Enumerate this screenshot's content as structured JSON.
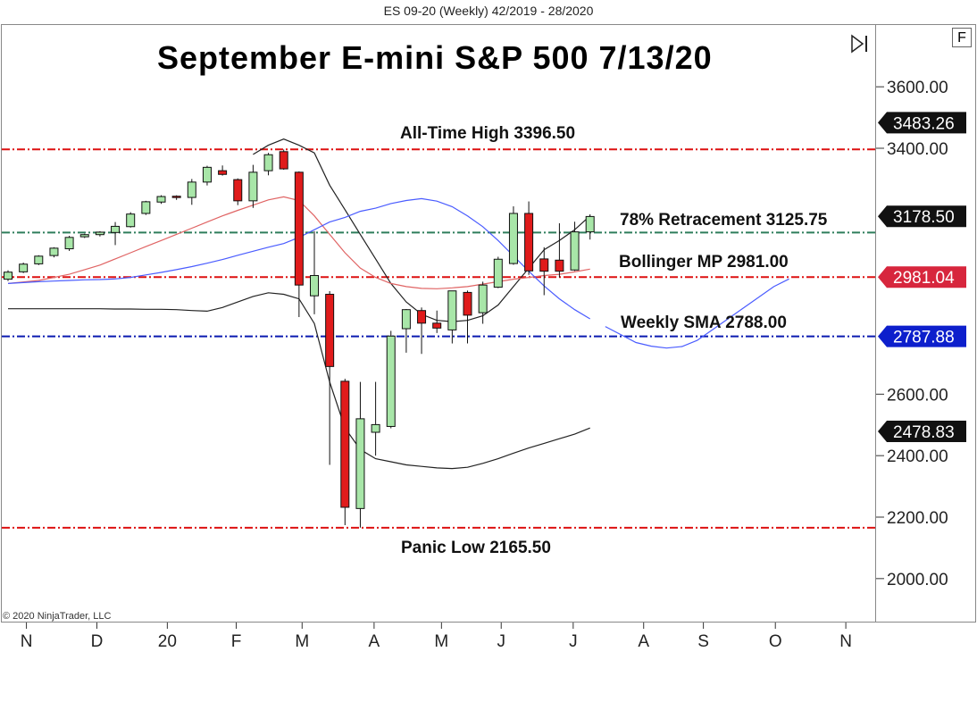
{
  "header": "ES 09-20 (Weekly)  42/2019 - 28/2020",
  "title": "September E-mini S&P 500 7/13/20",
  "copyright": "© 2020 NinjaTrader, LLC",
  "buttons": {
    "f_label": "F",
    "skip_icon": "skip-to-end-icon"
  },
  "colors": {
    "bull_fill": "#a8e6a8",
    "bear_fill": "#e01b1b",
    "candle_stroke": "#111111",
    "red_line": "#dd1111",
    "green_line": "#2e7d5b",
    "blue_line": "#0a1ab0",
    "bb_outer": "#222222",
    "bb_mid": "#e06464",
    "sma": "#4a5cff",
    "badge_dark": "#111111",
    "badge_red": "#d7263d",
    "badge_blue": "#0d1fcc"
  },
  "chart_data": {
    "type": "candlestick",
    "timeframe": "Weekly",
    "ylim": [
      1850,
      3750
    ],
    "y_ticks": [
      3600,
      3400,
      2600,
      2400,
      2200,
      2000
    ],
    "y_tick_labels": [
      "3600.00",
      "3400.00",
      "2600.00",
      "2400.00",
      "2200.00",
      "2000.00"
    ],
    "x_ticks": [
      {
        "label": "N",
        "week": 1.2
      },
      {
        "label": "D",
        "week": 5.8
      },
      {
        "label": "20",
        "week": 10.4
      },
      {
        "label": "F",
        "week": 14.9
      },
      {
        "label": "M",
        "week": 19.2
      },
      {
        "label": "A",
        "week": 23.9
      },
      {
        "label": "M",
        "week": 28.3
      },
      {
        "label": "J",
        "week": 32.2
      },
      {
        "label": "J",
        "week": 36.9
      },
      {
        "label": "A",
        "week": 41.5
      },
      {
        "label": "S",
        "week": 45.4
      },
      {
        "label": "O",
        "week": 50.1
      },
      {
        "label": "N",
        "week": 54.7
      }
    ],
    "candles": [
      {
        "o": 2974,
        "h": 3003,
        "l": 2968,
        "c": 2997
      },
      {
        "o": 2998,
        "h": 3028,
        "l": 2994,
        "c": 3023
      },
      {
        "o": 3024,
        "h": 3052,
        "l": 3020,
        "c": 3049
      },
      {
        "o": 3051,
        "h": 3078,
        "l": 3045,
        "c": 3075
      },
      {
        "o": 3073,
        "h": 3115,
        "l": 3066,
        "c": 3110
      },
      {
        "o": 3112,
        "h": 3122,
        "l": 3108,
        "c": 3119
      },
      {
        "o": 3119,
        "h": 3130,
        "l": 3113,
        "c": 3127
      },
      {
        "o": 3126,
        "h": 3160,
        "l": 3085,
        "c": 3146
      },
      {
        "o": 3145,
        "h": 3192,
        "l": 3142,
        "c": 3186
      },
      {
        "o": 3188,
        "h": 3229,
        "l": 3183,
        "c": 3226
      },
      {
        "o": 3225,
        "h": 3247,
        "l": 3219,
        "c": 3243
      },
      {
        "o": 3244,
        "h": 3247,
        "l": 3232,
        "c": 3242
      },
      {
        "o": 3240,
        "h": 3300,
        "l": 3216,
        "c": 3290
      },
      {
        "o": 3290,
        "h": 3343,
        "l": 3279,
        "c": 3338
      },
      {
        "o": 3327,
        "h": 3344,
        "l": 3311,
        "c": 3315
      },
      {
        "o": 3298,
        "h": 3302,
        "l": 3215,
        "c": 3229
      },
      {
        "o": 3229,
        "h": 3346,
        "l": 3206,
        "c": 3322
      },
      {
        "o": 3327,
        "h": 3385,
        "l": 3312,
        "c": 3379
      },
      {
        "o": 3389,
        "h": 3396,
        "l": 3330,
        "c": 3333
      },
      {
        "o": 3322,
        "h": 3325,
        "l": 2851,
        "c": 2955
      },
      {
        "o": 2920,
        "h": 3130,
        "l": 2860,
        "c": 2986
      },
      {
        "o": 2925,
        "h": 2935,
        "l": 2370,
        "c": 2690
      },
      {
        "o": 2642,
        "h": 2650,
        "l": 2174,
        "c": 2232
      },
      {
        "o": 2228,
        "h": 2640,
        "l": 2166,
        "c": 2520
      },
      {
        "o": 2476,
        "h": 2640,
        "l": 2400,
        "c": 2501
      },
      {
        "o": 2495,
        "h": 2806,
        "l": 2489,
        "c": 2789
      },
      {
        "o": 2813,
        "h": 2877,
        "l": 2735,
        "c": 2875
      },
      {
        "o": 2872,
        "h": 2882,
        "l": 2731,
        "c": 2831
      },
      {
        "o": 2831,
        "h": 2872,
        "l": 2799,
        "c": 2815
      },
      {
        "o": 2809,
        "h": 2925,
        "l": 2765,
        "c": 2936
      },
      {
        "o": 2931,
        "h": 2937,
        "l": 2765,
        "c": 2857
      },
      {
        "o": 2865,
        "h": 2966,
        "l": 2829,
        "c": 2955
      },
      {
        "o": 2948,
        "h": 3047,
        "l": 2945,
        "c": 3039
      },
      {
        "o": 3025,
        "h": 3211,
        "l": 3021,
        "c": 3188
      },
      {
        "o": 3188,
        "h": 3227,
        "l": 2988,
        "c": 3001
      },
      {
        "o": 3040,
        "h": 3078,
        "l": 2922,
        "c": 3000
      },
      {
        "o": 3036,
        "h": 3156,
        "l": 2980,
        "c": 3000
      },
      {
        "o": 3004,
        "h": 3161,
        "l": 3001,
        "c": 3128
      },
      {
        "o": 3128,
        "h": 3185,
        "l": 3103,
        "c": 3178
      }
    ],
    "indicators": {
      "bollinger_upper": [
        null,
        null,
        null,
        null,
        null,
        null,
        null,
        null,
        null,
        null,
        null,
        null,
        null,
        null,
        null,
        null,
        3380,
        3410,
        3430,
        3410,
        3385,
        3280,
        3200,
        3120,
        3040,
        2960,
        2900,
        2860,
        2840,
        2836,
        2840,
        2855,
        2890,
        2950,
        3010,
        3070,
        3100,
        3135,
        3180
      ],
      "bollinger_mid": [
        2960,
        2965,
        2970,
        2980,
        2990,
        3005,
        3020,
        3040,
        3060,
        3080,
        3100,
        3120,
        3140,
        3160,
        3180,
        3198,
        3215,
        3232,
        3242,
        3230,
        3180,
        3120,
        3060,
        3010,
        2980,
        2960,
        2950,
        2944,
        2943,
        2946,
        2950,
        2958,
        2966,
        2974,
        2980,
        2986,
        2990,
        2998,
        3007
      ],
      "bollinger_lower": [
        2878,
        2878,
        2878,
        2878,
        2878,
        2878,
        2878,
        2877,
        2877,
        2876,
        2876,
        2875,
        2872,
        2870,
        2882,
        2900,
        2918,
        2930,
        2925,
        2910,
        2830,
        2640,
        2490,
        2420,
        2390,
        2380,
        2370,
        2365,
        2360,
        2358,
        2362,
        2375,
        2390,
        2408,
        2425,
        2440,
        2455,
        2470,
        2490
      ],
      "weekly_sma": [
        2960,
        2963,
        2966,
        2968,
        2970,
        2972,
        2973,
        2975,
        2980,
        2988,
        2996,
        3005,
        3015,
        3026,
        3038,
        3052,
        3065,
        3078,
        3090,
        3110,
        3135,
        3160,
        3175,
        3195,
        3205,
        3220,
        3230,
        3236,
        3228,
        3210,
        3180,
        3145,
        3100,
        3050,
        3000,
        2952,
        2910,
        2875,
        2845
      ]
    },
    "sma_projection": [
      {
        "week": 39,
        "value": 2820
      },
      {
        "week": 41,
        "value": 2768
      },
      {
        "week": 42,
        "value": 2756
      },
      {
        "week": 43,
        "value": 2750
      },
      {
        "week": 44,
        "value": 2755
      },
      {
        "week": 45,
        "value": 2775
      },
      {
        "week": 46,
        "value": 2810
      },
      {
        "week": 48,
        "value": 2880
      },
      {
        "week": 50,
        "value": 2950
      },
      {
        "week": 51,
        "value": 2975
      }
    ],
    "bb_lower_projection": [
      {
        "week": 38,
        "value": 2490
      }
    ],
    "levels": [
      {
        "label": "All-Time High 3396.50",
        "value": 3396.5,
        "color": "red"
      },
      {
        "label": "78% Retracement 3125.75",
        "value": 3125.75,
        "color": "green"
      },
      {
        "label": "Bollinger MP 2981.00",
        "value": 2981.0,
        "color": "red"
      },
      {
        "label": "Weekly SMA 2788.00",
        "value": 2788.0,
        "color": "blue"
      },
      {
        "label": "Panic Low 2165.50",
        "value": 2165.5,
        "color": "red"
      }
    ],
    "price_badges": [
      {
        "text": "3483.26",
        "value": 3483.26,
        "style": "dark"
      },
      {
        "text": "3178.50",
        "value": 3178.5,
        "style": "dark"
      },
      {
        "text": "2981.04",
        "value": 2981.04,
        "style": "red"
      },
      {
        "text": "2787.88",
        "value": 2787.88,
        "style": "blue"
      },
      {
        "text": "2478.83",
        "value": 2478.83,
        "style": "dark"
      }
    ]
  }
}
